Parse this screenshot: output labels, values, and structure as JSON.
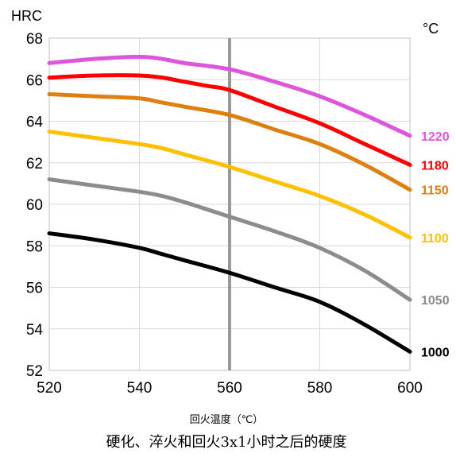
{
  "chart_data": {
    "type": "line",
    "title": "硬化、淬火和回火3x1小时之后的硬度",
    "xlabel": "回火温度（℃）",
    "ylabel": "HRC",
    "legend_unit": "°C",
    "xlim": [
      520,
      600
    ],
    "ylim": [
      52,
      68
    ],
    "x_ticks": [
      520,
      540,
      560,
      580,
      600
    ],
    "y_ticks": [
      52,
      54,
      56,
      58,
      60,
      62,
      64,
      66,
      68
    ],
    "grid": true,
    "vertical_marker_x": 560,
    "vertical_marker_color": "#999999",
    "legend_placement": "right, at line ends",
    "series": [
      {
        "name": "1220",
        "color": "#DD55DD",
        "x": [
          520,
          530,
          540,
          545,
          550,
          560,
          570,
          580,
          590,
          600
        ],
        "y": [
          66.8,
          67.0,
          67.1,
          67.0,
          66.8,
          66.5,
          65.9,
          65.2,
          64.3,
          63.3
        ]
      },
      {
        "name": "1180",
        "color": "#FF0000",
        "x": [
          520,
          530,
          540,
          545,
          550,
          555,
          560,
          570,
          580,
          590,
          600
        ],
        "y": [
          66.1,
          66.2,
          66.2,
          66.1,
          65.9,
          65.7,
          65.5,
          64.7,
          63.9,
          62.9,
          61.9
        ]
      },
      {
        "name": "1150",
        "color": "#DD8011",
        "x": [
          520,
          530,
          540,
          545,
          550,
          560,
          570,
          580,
          590,
          600
        ],
        "y": [
          65.3,
          65.2,
          65.1,
          64.9,
          64.7,
          64.3,
          63.6,
          62.9,
          61.9,
          60.7
        ]
      },
      {
        "name": "1100",
        "color": "#FFC000",
        "x": [
          520,
          530,
          540,
          545,
          550,
          560,
          570,
          580,
          590,
          600
        ],
        "y": [
          63.5,
          63.2,
          62.9,
          62.7,
          62.4,
          61.8,
          61.1,
          60.4,
          59.5,
          58.4
        ]
      },
      {
        "name": "1050",
        "color": "#8C8C8C",
        "x": [
          520,
          530,
          540,
          545,
          550,
          560,
          570,
          580,
          590,
          600
        ],
        "y": [
          61.2,
          60.9,
          60.6,
          60.4,
          60.1,
          59.4,
          58.7,
          57.9,
          56.8,
          55.4
        ]
      },
      {
        "name": "1000",
        "color": "#000000",
        "x": [
          520,
          530,
          540,
          545,
          550,
          560,
          570,
          580,
          590,
          600
        ],
        "y": [
          58.6,
          58.3,
          57.9,
          57.6,
          57.3,
          56.7,
          56.0,
          55.3,
          54.2,
          52.9
        ]
      }
    ]
  }
}
